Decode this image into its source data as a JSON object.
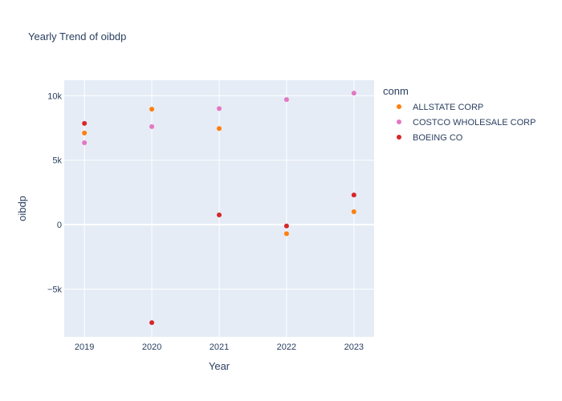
{
  "chart_data": {
    "type": "scatter",
    "title": "Yearly Trend of oibdp",
    "xlabel": "Year",
    "ylabel": "oibdp",
    "x_ticks": [
      "2019",
      "2020",
      "2021",
      "2022",
      "2023"
    ],
    "y_ticks": [
      {
        "value": 10000,
        "label": "10k"
      },
      {
        "value": 5000,
        "label": "5k"
      },
      {
        "value": 0,
        "label": "0"
      },
      {
        "value": -5000,
        "label": "−5k"
      }
    ],
    "xlim": [
      2018.7,
      2023.3
    ],
    "ylim": [
      -8700,
      11200
    ],
    "grid": true,
    "legend_title": "conm",
    "legend_position": "right",
    "series": [
      {
        "name": "ALLSTATE CORP",
        "color": "#ff7f0e",
        "x": [
          2019,
          2020,
          2021,
          2022,
          2023
        ],
        "y": [
          7100,
          8950,
          7450,
          -700,
          1000
        ]
      },
      {
        "name": "COSTCO WHOLESALE CORP",
        "color": "#e377c2",
        "x": [
          2019,
          2020,
          2021,
          2022,
          2023
        ],
        "y": [
          6350,
          7600,
          9000,
          9700,
          10200
        ]
      },
      {
        "name": "BOEING CO",
        "color": "#d62728",
        "x": [
          2019,
          2020,
          2021,
          2022,
          2023
        ],
        "y": [
          7850,
          -7600,
          750,
          -100,
          2300
        ]
      }
    ]
  }
}
